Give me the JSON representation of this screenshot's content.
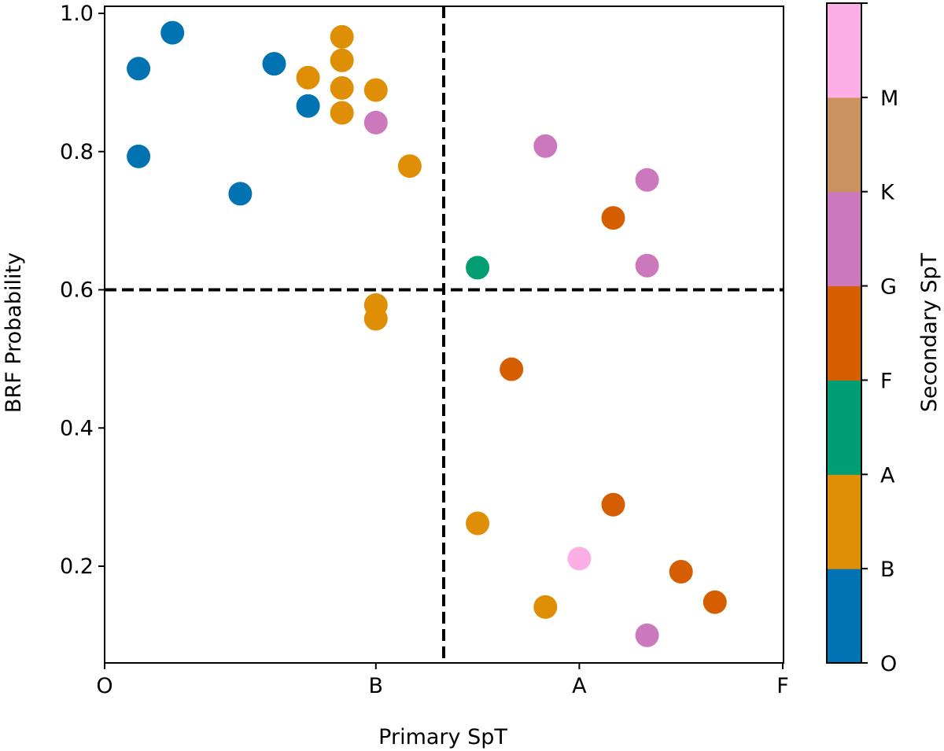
{
  "chart_data": {
    "type": "scatter",
    "title": "",
    "xlabel": "Primary SpT",
    "ylabel": "BRF Probability",
    "xlim": [
      0,
      1.0
    ],
    "ylim": [
      0.05,
      1.02
    ],
    "x_ticks": [
      {
        "value": 0,
        "label": "O"
      },
      {
        "value": 0.4,
        "label": "B"
      },
      {
        "value": 0.7,
        "label": "A"
      },
      {
        "value": 1.0,
        "label": "F"
      }
    ],
    "y_ticks": [
      {
        "value": 0.2,
        "label": "0.2"
      },
      {
        "value": 0.4,
        "label": "0.4"
      },
      {
        "value": 0.6,
        "label": "0.6"
      },
      {
        "value": 0.8,
        "label": "0.8"
      },
      {
        "value": 1.0,
        "label": "1.0"
      }
    ],
    "thresholds": {
      "x": 0.5,
      "y": 0.6
    },
    "colorbar": {
      "label": "Secondary SpT",
      "categories": [
        "O",
        "B",
        "A",
        "F",
        "G",
        "K",
        "M"
      ],
      "colors": [
        "#0173b2",
        "#de8f05",
        "#029e73",
        "#d55e00",
        "#cc78bc",
        "#ca9161",
        "#fbafe4"
      ]
    },
    "points": [
      {
        "x": 0.1,
        "y": 0.972,
        "secondary": "O"
      },
      {
        "x": 0.05,
        "y": 0.92,
        "secondary": "O"
      },
      {
        "x": 0.25,
        "y": 0.927,
        "secondary": "O"
      },
      {
        "x": 0.3,
        "y": 0.866,
        "secondary": "O"
      },
      {
        "x": 0.05,
        "y": 0.793,
        "secondary": "O"
      },
      {
        "x": 0.2,
        "y": 0.739,
        "secondary": "O"
      },
      {
        "x": 0.35,
        "y": 0.966,
        "secondary": "B"
      },
      {
        "x": 0.35,
        "y": 0.932,
        "secondary": "B"
      },
      {
        "x": 0.3,
        "y": 0.907,
        "secondary": "B"
      },
      {
        "x": 0.35,
        "y": 0.892,
        "secondary": "B"
      },
      {
        "x": 0.4,
        "y": 0.889,
        "secondary": "B"
      },
      {
        "x": 0.35,
        "y": 0.856,
        "secondary": "B"
      },
      {
        "x": 0.45,
        "y": 0.779,
        "secondary": "B"
      },
      {
        "x": 0.4,
        "y": 0.578,
        "secondary": "B"
      },
      {
        "x": 0.4,
        "y": 0.558,
        "secondary": "B"
      },
      {
        "x": 0.55,
        "y": 0.262,
        "secondary": "B"
      },
      {
        "x": 0.65,
        "y": 0.141,
        "secondary": "B"
      },
      {
        "x": 0.4,
        "y": 0.842,
        "secondary": "G"
      },
      {
        "x": 0.65,
        "y": 0.808,
        "secondary": "G"
      },
      {
        "x": 0.8,
        "y": 0.759,
        "secondary": "G"
      },
      {
        "x": 0.8,
        "y": 0.635,
        "secondary": "G"
      },
      {
        "x": 0.8,
        "y": 0.1,
        "secondary": "G"
      },
      {
        "x": 0.55,
        "y": 0.632,
        "secondary": "A"
      },
      {
        "x": 0.75,
        "y": 0.704,
        "secondary": "F"
      },
      {
        "x": 0.6,
        "y": 0.485,
        "secondary": "F"
      },
      {
        "x": 0.75,
        "y": 0.289,
        "secondary": "F"
      },
      {
        "x": 0.85,
        "y": 0.192,
        "secondary": "F"
      },
      {
        "x": 0.9,
        "y": 0.148,
        "secondary": "F"
      },
      {
        "x": 0.7,
        "y": 0.211,
        "secondary": "M"
      }
    ]
  }
}
